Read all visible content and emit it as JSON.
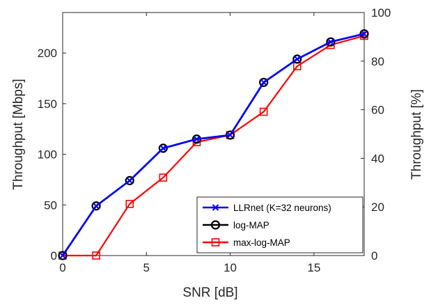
{
  "chart_data": {
    "type": "line",
    "xlabel": "SNR [dB]",
    "ylabel": "Throughput [Mbps]",
    "ylabel_right": "Throughput [%]",
    "xlim": [
      0,
      18
    ],
    "ylim": [
      0,
      240
    ],
    "ylim_right": [
      0,
      100
    ],
    "xticks": [
      0,
      5,
      10,
      15
    ],
    "yticks": [
      0,
      50,
      100,
      150,
      200
    ],
    "yticks_right": [
      0,
      20,
      40,
      60,
      80,
      100
    ],
    "grid": false,
    "legend_position": "bottom-right",
    "x": [
      0,
      2,
      4,
      6,
      8,
      10,
      12,
      14,
      16,
      18
    ],
    "series": [
      {
        "name": "LLRnet (K=32 neurons)",
        "color": "#0000ff",
        "marker": "x",
        "values": [
          0,
          49,
          74,
          106,
          115,
          119,
          171,
          194,
          211,
          219
        ]
      },
      {
        "name": "log-MAP",
        "color": "#000000",
        "marker": "o",
        "values": [
          0,
          49,
          74,
          106,
          115,
          119,
          171,
          194,
          211,
          219
        ]
      },
      {
        "name": "max-log-MAP",
        "color": "#ff0000",
        "marker": "s",
        "values": [
          0,
          0,
          51,
          77,
          112,
          119,
          142,
          187,
          208,
          217
        ]
      }
    ]
  }
}
